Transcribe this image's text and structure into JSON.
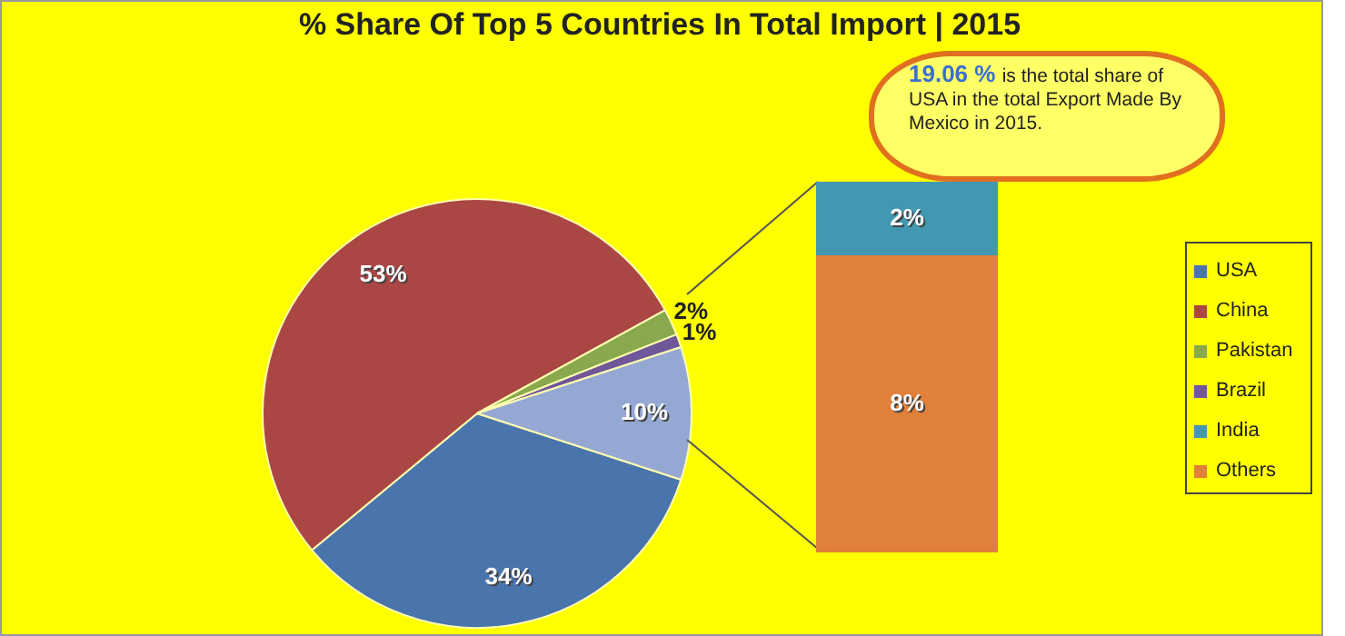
{
  "chart_data": [
    {
      "type": "pie",
      "title": "% Share Of Top 5 Countries In Total Import | 2015",
      "categories": [
        "USA",
        "China",
        "Pakistan",
        "Brazil",
        null
      ],
      "values": [
        34,
        53,
        2,
        1,
        10
      ],
      "value_labels": [
        "34%",
        "53%",
        "2%",
        "1%",
        "10%"
      ],
      "colors": [
        "#4a74ac",
        "#aa4644",
        "#8aa84e",
        "#6f579a",
        "#95a8d4"
      ],
      "legend": "right",
      "annotations": [
        "19.06 %",
        "is the total share of USA in the total Export Made By Mexico in 2015."
      ]
    },
    {
      "type": "bar",
      "stacked": true,
      "categories": [
        null
      ],
      "series": [
        {
          "name": "Others",
          "color": "#e0803a",
          "values": [
            8
          ],
          "value_labels": [
            "8%"
          ]
        },
        {
          "name": "India",
          "color": "#4198b0",
          "values": [
            2
          ],
          "value_labels": [
            "2%"
          ]
        }
      ],
      "legend": "right"
    }
  ]
}
